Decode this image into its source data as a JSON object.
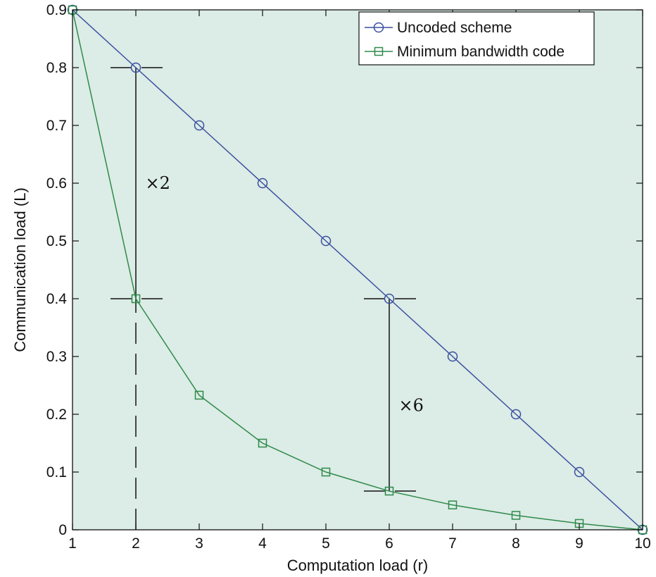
{
  "chart_data": {
    "type": "line",
    "title": "",
    "xlabel": "Computation load (r)",
    "ylabel": "Communication load (L)",
    "xlim": [
      1,
      10
    ],
    "ylim": [
      0,
      0.9
    ],
    "xticks": [
      "1",
      "2",
      "3",
      "4",
      "5",
      "6",
      "7",
      "8",
      "9",
      "10"
    ],
    "yticks": [
      "0",
      "0.1",
      "0.2",
      "0.3",
      "0.4",
      "0.5",
      "0.6",
      "0.7",
      "0.8",
      "0.9"
    ],
    "x": [
      1,
      2,
      3,
      4,
      5,
      6,
      7,
      8,
      9,
      10
    ],
    "series": [
      {
        "name": "Uncoded scheme",
        "marker": "circle",
        "color": "#3a4fa0",
        "values": [
          0.9,
          0.8,
          0.7,
          0.6,
          0.5,
          0.4,
          0.3,
          0.2,
          0.1,
          0.0
        ]
      },
      {
        "name": "Minimum bandwidth code",
        "marker": "square",
        "color": "#2f8a4a",
        "values": [
          0.9,
          0.4,
          0.233,
          0.15,
          0.1,
          0.067,
          0.043,
          0.025,
          0.011,
          0.0
        ]
      }
    ],
    "legend_position": "top-right",
    "background_color": "#dcece6",
    "grid": false,
    "annotations": [
      {
        "text": "×2",
        "x": 2.15,
        "y": 0.6
      },
      {
        "text": "×6",
        "x": 6.15,
        "y": 0.215
      }
    ],
    "reference_lines": [
      {
        "type": "dashed-horizontal",
        "y": 0.8,
        "x_from": 1.6,
        "x_to": 2.5
      },
      {
        "type": "dashed-horizontal",
        "y": 0.4,
        "x_from": 1.6,
        "x_to": 2.5
      },
      {
        "type": "dashed-vertical",
        "x": 2,
        "y_from": 0,
        "y_to": 0.4
      },
      {
        "type": "solid-vertical",
        "x": 2,
        "y_from": 0.4,
        "y_to": 0.8
      },
      {
        "type": "dashed-horizontal",
        "y": 0.4,
        "x_from": 5.6,
        "x_to": 6.5
      },
      {
        "type": "dashed-horizontal",
        "y": 0.067,
        "x_from": 5.6,
        "x_to": 6.5
      },
      {
        "type": "solid-vertical",
        "x": 6,
        "y_from": 0.067,
        "y_to": 0.4
      }
    ]
  }
}
